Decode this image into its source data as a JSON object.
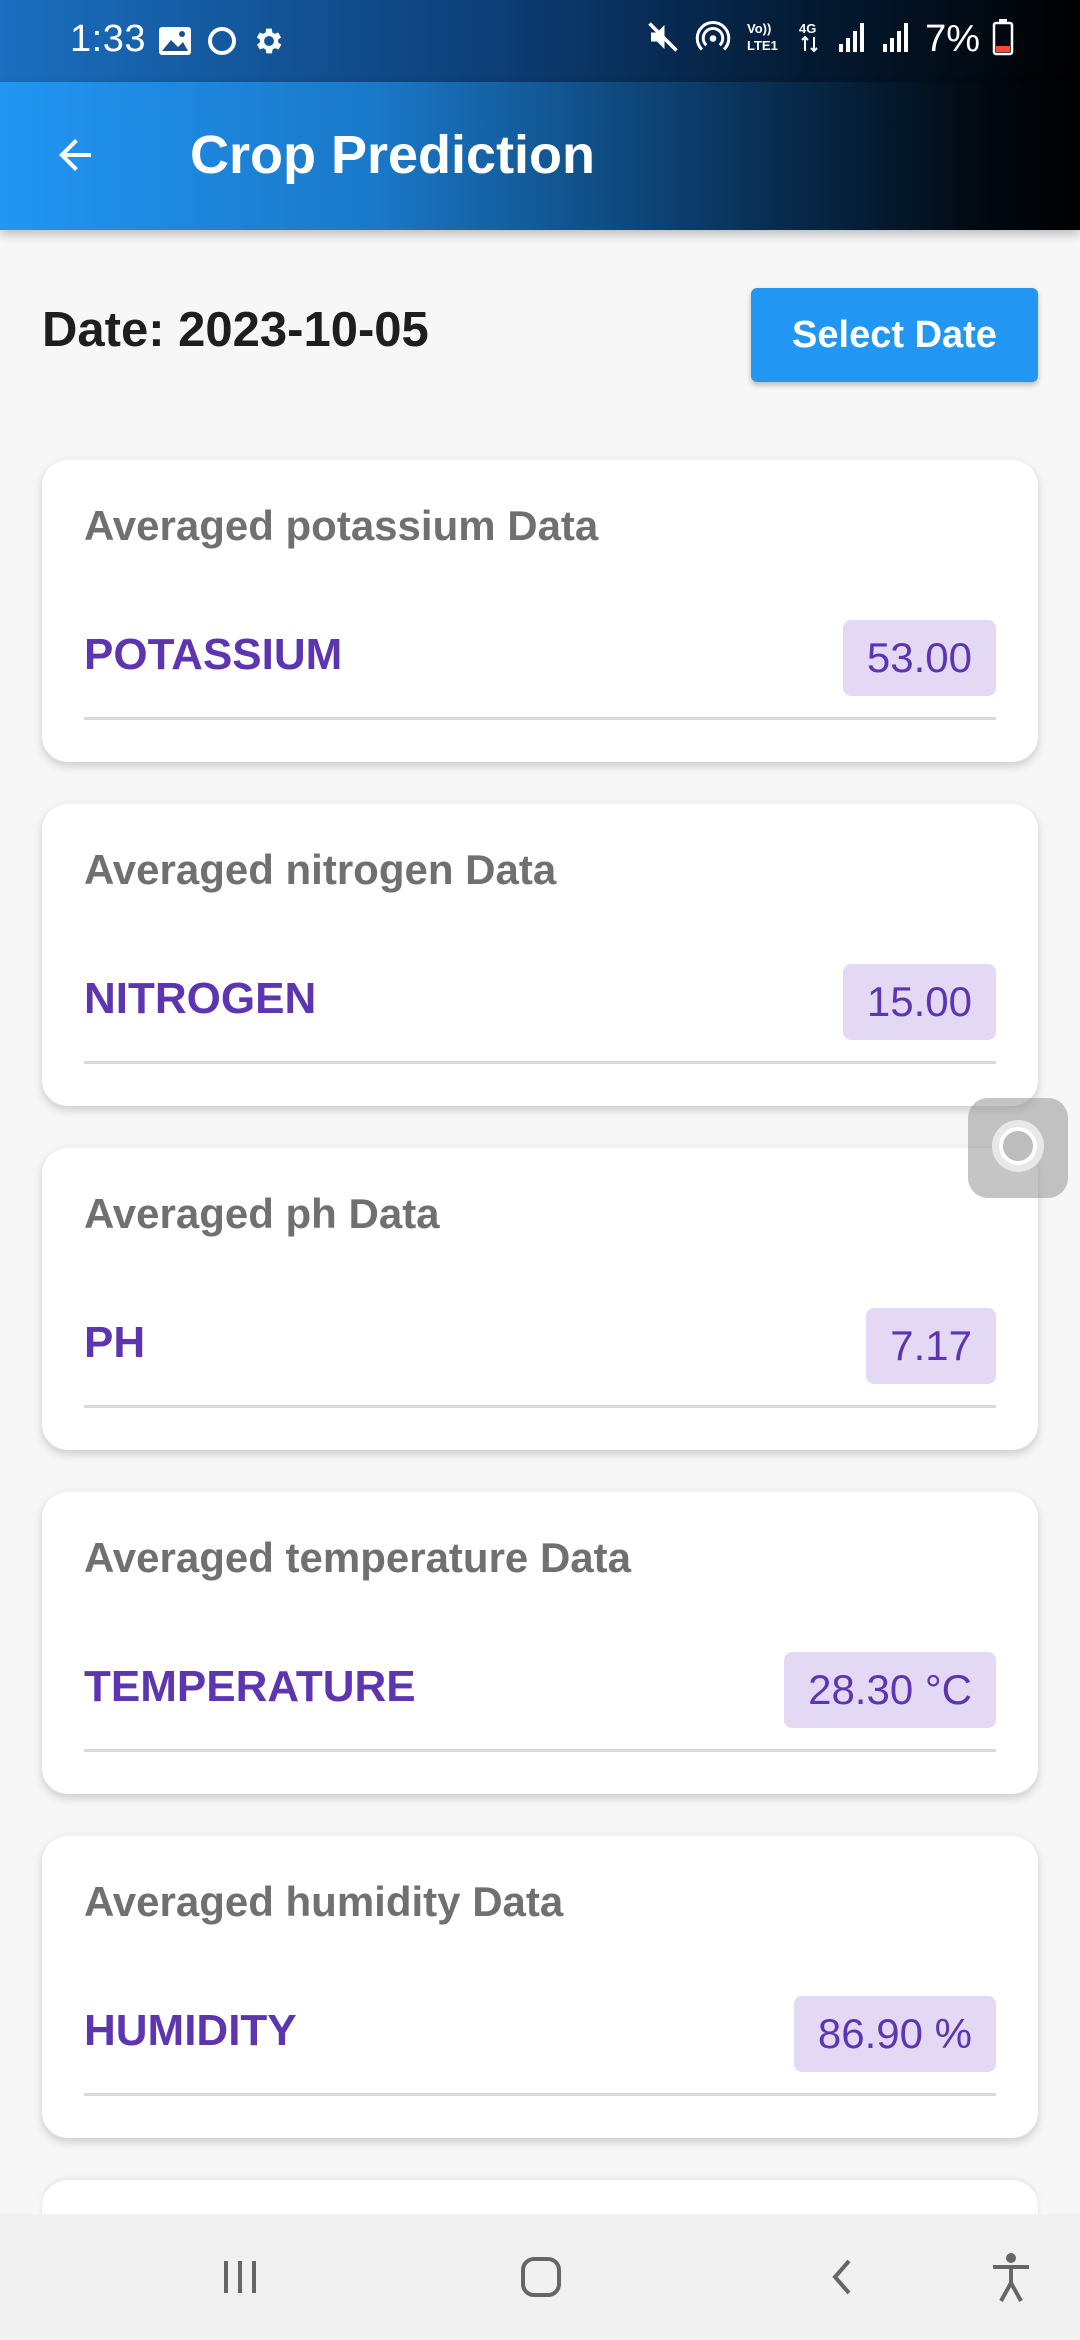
{
  "status_bar": {
    "time": "1:33",
    "battery_percent": "7%",
    "left_icons": [
      "gallery-icon",
      "circle-icon",
      "gear-icon"
    ],
    "right_icons": [
      "mute-icon",
      "hotspot-icon",
      "volte-icon",
      "4g-icon",
      "signal-icon",
      "signal-icon",
      "battery-low-icon"
    ]
  },
  "app_bar": {
    "title": "Crop Prediction",
    "back_icon": "arrow-left-icon",
    "colors": {
      "start": "#2196f3",
      "end": "#000000"
    }
  },
  "date_row": {
    "label": "Date: 2023-10-05",
    "button_label": "Select Date"
  },
  "cards": [
    {
      "title": "Averaged potassium Data",
      "label": "POTASSIUM",
      "value": "53.00"
    },
    {
      "title": "Averaged nitrogen Data",
      "label": "NITROGEN",
      "value": "15.00"
    },
    {
      "title": "Averaged ph Data",
      "label": "PH",
      "value": "7.17"
    },
    {
      "title": "Averaged temperature Data",
      "label": "TEMPERATURE",
      "value": "28.30 °C"
    },
    {
      "title": "Averaged humidity Data",
      "label": "HUMIDITY",
      "value": "86.90 %"
    }
  ],
  "nav_bar": {
    "buttons": [
      "recent-apps-icon",
      "home-icon",
      "back-icon",
      "accessibility-icon"
    ]
  },
  "colors": {
    "accent": "#2196f3",
    "label_purple": "#5e35b1",
    "chip_bg": "#e3d9f4"
  }
}
